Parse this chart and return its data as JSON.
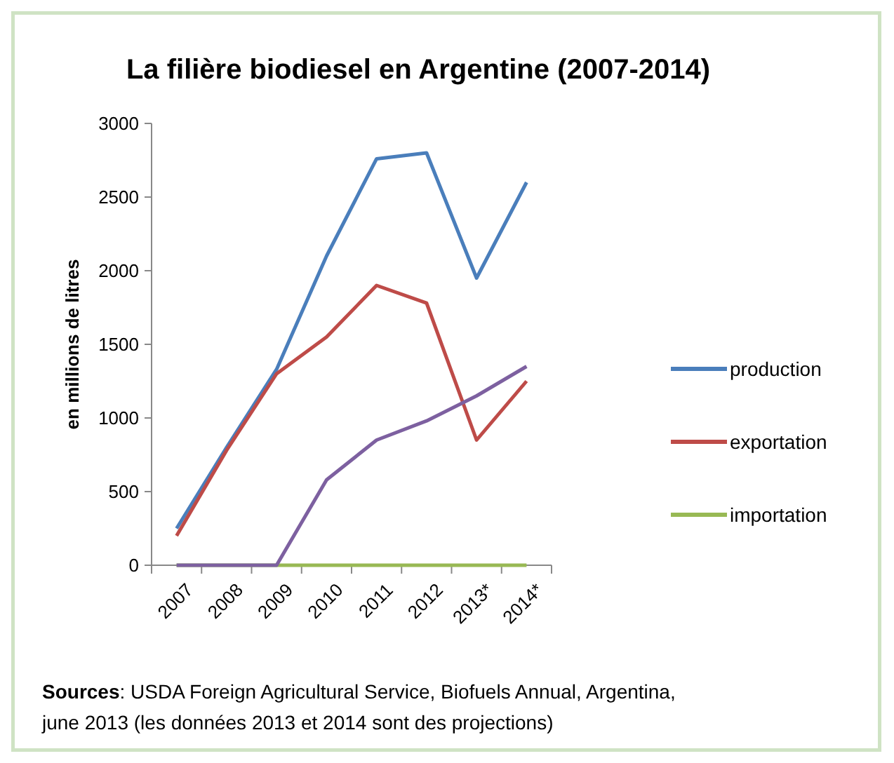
{
  "chart_data": {
    "type": "line",
    "title": "La filière biodiesel en Argentine (2007-2014)",
    "ylabel": "en millions de litres",
    "categories": [
      "2007",
      "2008",
      "2009",
      "2010",
      "2011",
      "2012",
      "2013*",
      "2014*"
    ],
    "series": [
      {
        "name": "production",
        "color": "#4a7ebb",
        "values": [
          250,
          800,
          1330,
          2100,
          2760,
          2800,
          1950,
          2600
        ]
      },
      {
        "name": "exportation",
        "color": "#be4b48",
        "values": [
          200,
          780,
          1300,
          1550,
          1900,
          1780,
          850,
          1250
        ]
      },
      {
        "name": "importation",
        "color": "#98b954",
        "values": [
          0,
          0,
          0,
          0,
          0,
          0,
          0,
          0
        ]
      },
      {
        "color": "#7d60a0",
        "values": [
          0,
          0,
          0,
          580,
          850,
          980,
          1150,
          1350
        ]
      }
    ],
    "ylim": [
      0,
      3000
    ],
    "yticks": [
      0,
      500,
      1000,
      1500,
      2000,
      2500,
      3000
    ],
    "legend": "right",
    "grid": false,
    "marker": "none",
    "line_style": "solid",
    "annotations": [
      "Sources: USDA Foreign Agricultural Service, Biofuels Annual, Argentina, june 2013 (les données 2013 et 2014 sont des projections)"
    ]
  }
}
